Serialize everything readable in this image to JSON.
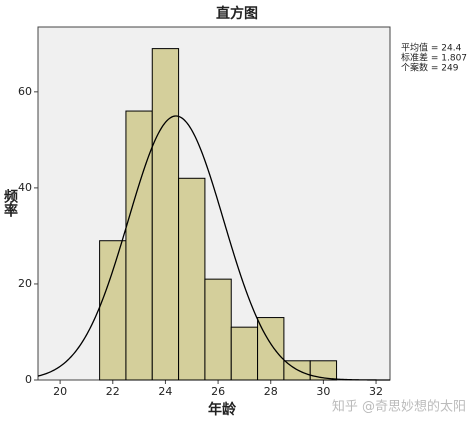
{
  "chart_data": {
    "type": "histogram",
    "title": "直方图",
    "xlabel": "年龄",
    "ylabel": "频率",
    "bins": [
      21.5,
      22.5,
      23.5,
      24.5,
      25.5,
      26.5,
      27.5,
      28.5,
      29.5,
      30.5
    ],
    "values": [
      29,
      56,
      69,
      42,
      21,
      11,
      13,
      4,
      4
    ],
    "color": "#d4cf9b",
    "xlim": [
      19.16,
      32.53
    ],
    "xticks": [
      20,
      22,
      24,
      26,
      28,
      30,
      32
    ],
    "ylim": [
      0,
      73.5
    ],
    "yticks": [
      0,
      20,
      40,
      60
    ],
    "stats": [
      {
        "value": 24.4,
        "label": "平均值 = 24.4"
      },
      {
        "value": 1.807,
        "label": "标准差 = 1.807"
      },
      {
        "value": 249,
        "label": "个案数 = 249"
      }
    ],
    "watermark": "知乎 @奇思妙想的太阳"
  }
}
